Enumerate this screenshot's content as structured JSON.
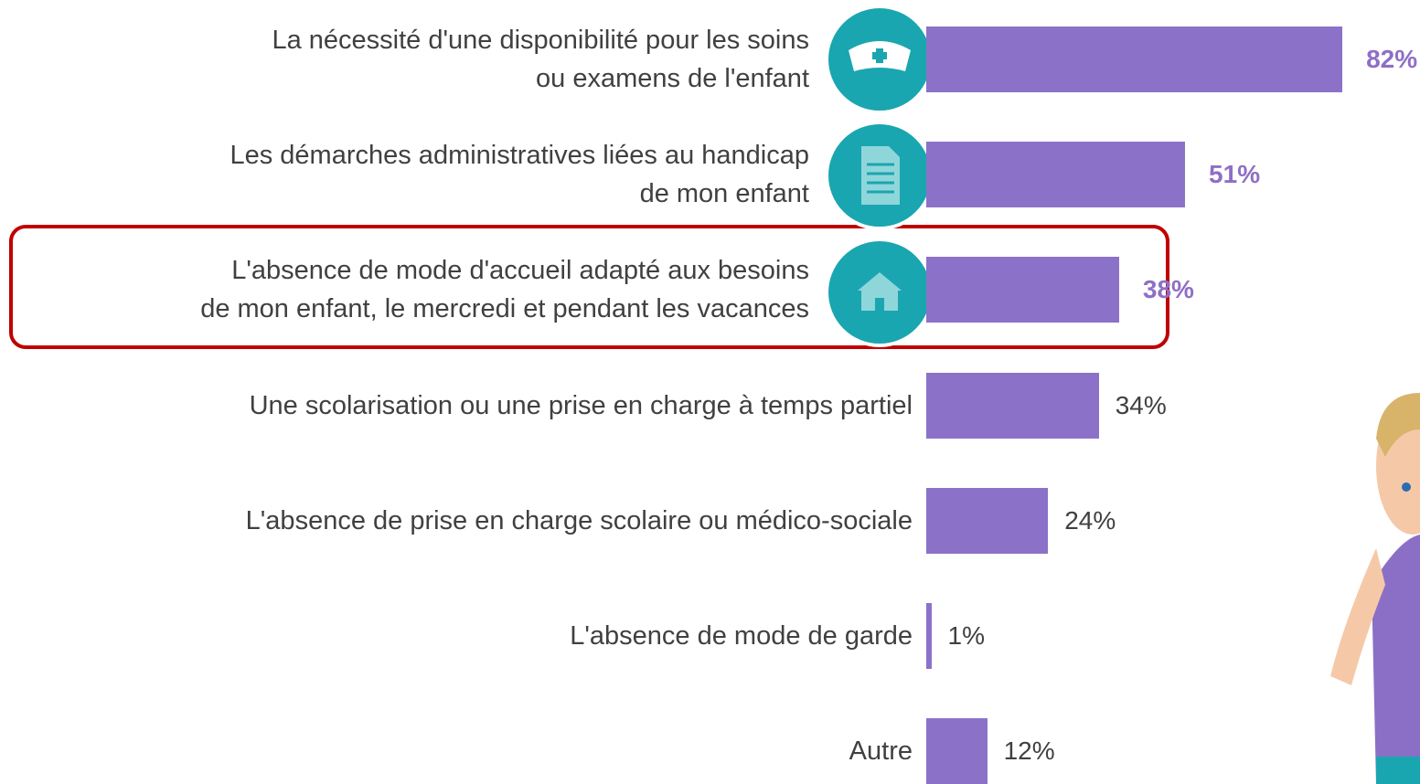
{
  "chart_data": {
    "type": "bar",
    "orientation": "horizontal",
    "categories": [
      "La nécessité d'une disponibilité pour les soins\nou examens de l'enfant",
      "Les démarches administratives liées au handicap\nde mon enfant",
      "L'absence de mode d'accueil adapté aux besoins\nde mon enfant, le mercredi et pendant les vacances",
      "Une scolarisation ou une prise en charge à temps partiel",
      "L'absence de prise en charge scolaire ou médico-sociale",
      "L'absence de mode de garde",
      "Autre"
    ],
    "values": [
      82,
      51,
      38,
      34,
      24,
      1,
      12
    ],
    "value_labels": [
      "82%",
      "51%",
      "38%",
      "34%",
      "24%",
      "1%",
      "12%"
    ],
    "color": "#8b72c8"
  }
}
